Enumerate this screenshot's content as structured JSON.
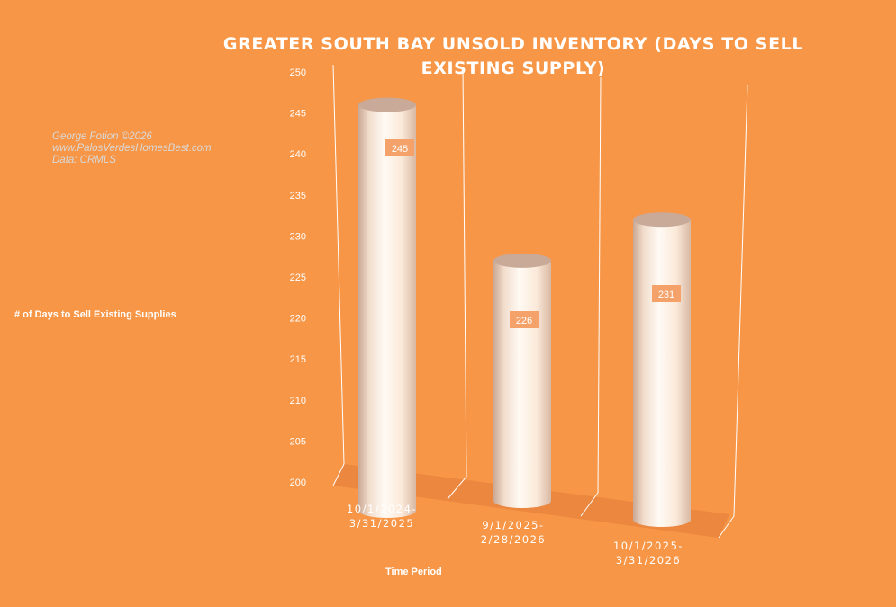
{
  "chart_data": {
    "type": "bar",
    "style": "3d-cylinder",
    "title": "GREATER SOUTH BAY UNSOLD INVENTORY (DAYS TO SELL EXISTING SUPPLY)",
    "xlabel": "Time Period",
    "ylabel": "# of Days to Sell Existing Supplies",
    "categories": [
      [
        "10/1/2024-",
        "3/31/2025"
      ],
      [
        "9/1/2025-",
        "2/28/2026"
      ],
      [
        "10/1/2025-",
        "3/31/2026"
      ]
    ],
    "values": [
      245,
      226,
      231
    ],
    "data_labels": [
      "245",
      "226",
      "231"
    ],
    "ylim": [
      200,
      250
    ],
    "yticks": [
      "200",
      "205",
      "210",
      "215",
      "220",
      "225",
      "230",
      "235",
      "240",
      "245",
      "250"
    ],
    "grid": false,
    "legend": "none"
  },
  "watermark": {
    "line1": "George Fotion ©2026",
    "line2": "www.PalosVerdesHomesBest.com",
    "line3": "Data: CRMLS"
  },
  "colors": {
    "background": "#F79646",
    "bar": "#FDEADA",
    "bar_top": "#C9A998",
    "label_box": "#F4A26A",
    "floor": "#E9853E",
    "axis_text": "#ffffff"
  }
}
